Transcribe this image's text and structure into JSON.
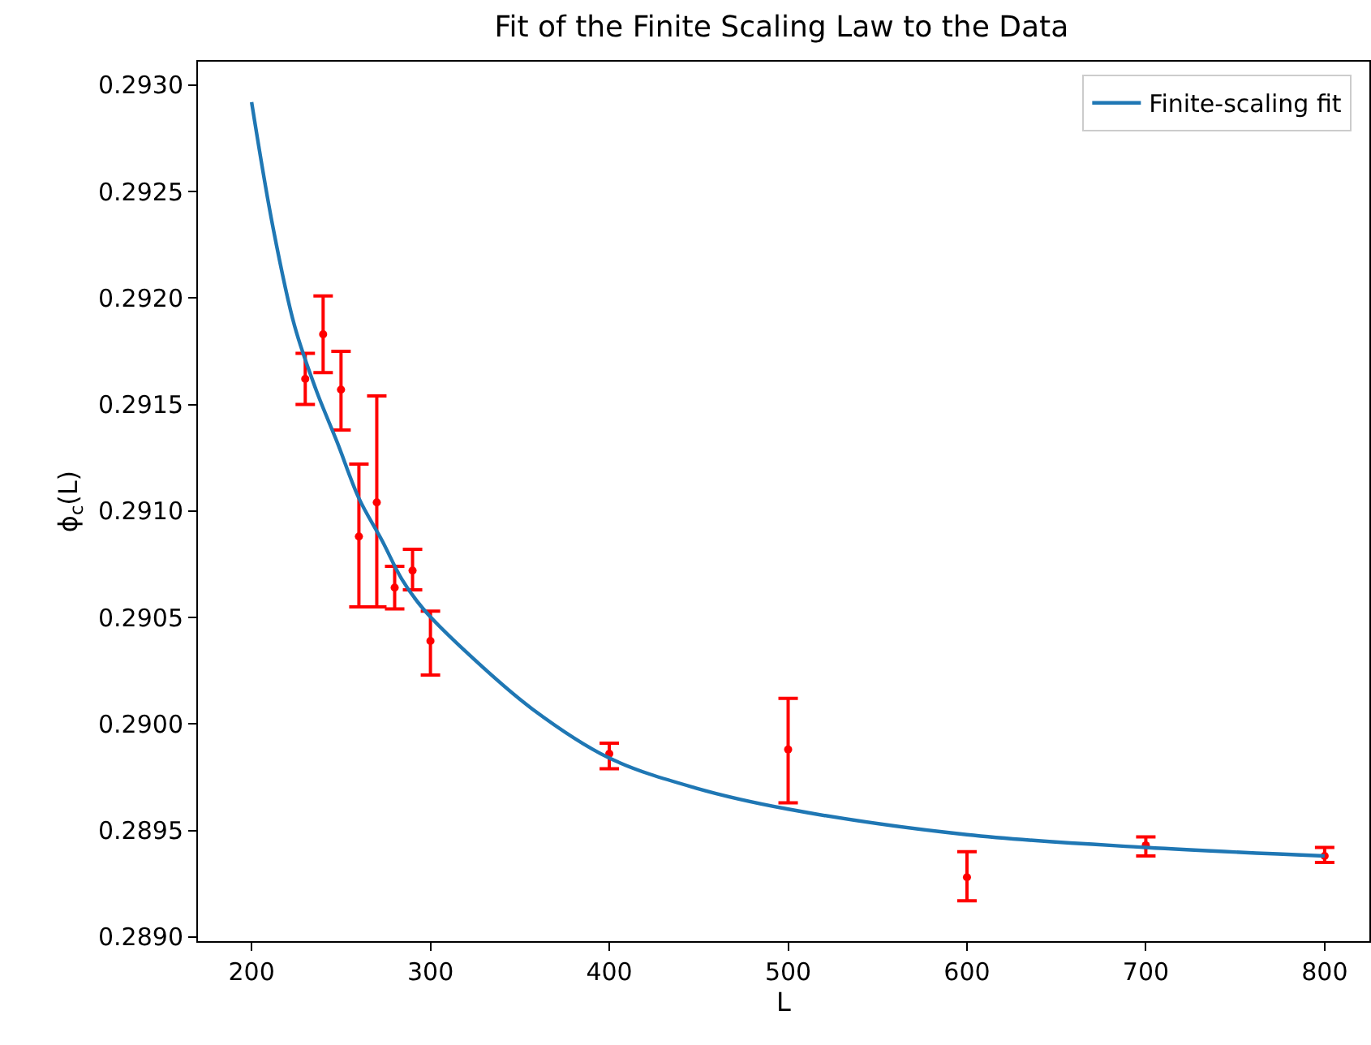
{
  "chart_data": {
    "type": "scatter",
    "title": "Fit of the Finite Scaling Law to the Data",
    "xlabel": "L",
    "ylabel": "ϕ$_{c}$(L)",
    "x": [
      230,
      240,
      250,
      260,
      270,
      280,
      290,
      300,
      400,
      500,
      600,
      700,
      800
    ],
    "series": [
      {
        "color": "#ff0000",
        "marker": "circle",
        "values": [
          0.29162,
          0.29183,
          0.29157,
          0.29088,
          0.29104,
          0.29064,
          0.29072,
          0.29039,
          0.28986,
          0.28988,
          0.28928,
          0.28943,
          0.28938
        ],
        "errors": [
          [
            0.2915,
            0.29174
          ],
          [
            0.29165,
            0.29201
          ],
          [
            0.29138,
            0.29175
          ],
          [
            0.29055,
            0.29122
          ],
          [
            0.29055,
            0.29154
          ],
          [
            0.29054,
            0.29074
          ],
          [
            0.29063,
            0.29082
          ],
          [
            0.29023,
            0.29053
          ],
          [
            0.28979,
            0.28991
          ],
          [
            0.28963,
            0.29012
          ],
          [
            0.28917,
            0.2894
          ],
          [
            0.28938,
            0.28947
          ],
          [
            0.28935,
            0.28942
          ]
        ]
      },
      {
        "type": "line",
        "name": "Finite-scaling fit",
        "color": "#1f77b4",
        "marker": "none",
        "line_style": "solid",
        "x": [
          200,
          212,
          224,
          236,
          248,
          260,
          273,
          284,
          296,
          321,
          357,
          400,
          448,
          500,
          600,
          700,
          800
        ],
        "values": [
          0.29292,
          0.29233,
          0.29187,
          0.29157,
          0.29132,
          0.29106,
          0.29086,
          0.29068,
          0.29054,
          0.29033,
          0.29007,
          0.28984,
          0.2897,
          0.2896,
          0.28948,
          0.28942,
          0.28938
        ]
      }
    ],
    "xlim": [
      170,
      825
    ],
    "ylim": [
      0.28898,
      0.29311
    ],
    "xticks": [
      200,
      300,
      400,
      500,
      600,
      700,
      800
    ],
    "yticks": [
      {
        "value": 0.289,
        "label": "0.2890"
      },
      {
        "value": 0.2895,
        "label": "0.2895"
      },
      {
        "value": 0.29,
        "label": "0.2900"
      },
      {
        "value": 0.2905,
        "label": "0.2905"
      },
      {
        "value": 0.291,
        "label": "0.2910"
      },
      {
        "value": 0.2915,
        "label": "0.2915"
      },
      {
        "value": 0.292,
        "label": "0.2920"
      },
      {
        "value": 0.2925,
        "label": "0.2925"
      },
      {
        "value": 0.293,
        "label": "0.2930"
      }
    ],
    "grid": false,
    "legend": "top right"
  }
}
